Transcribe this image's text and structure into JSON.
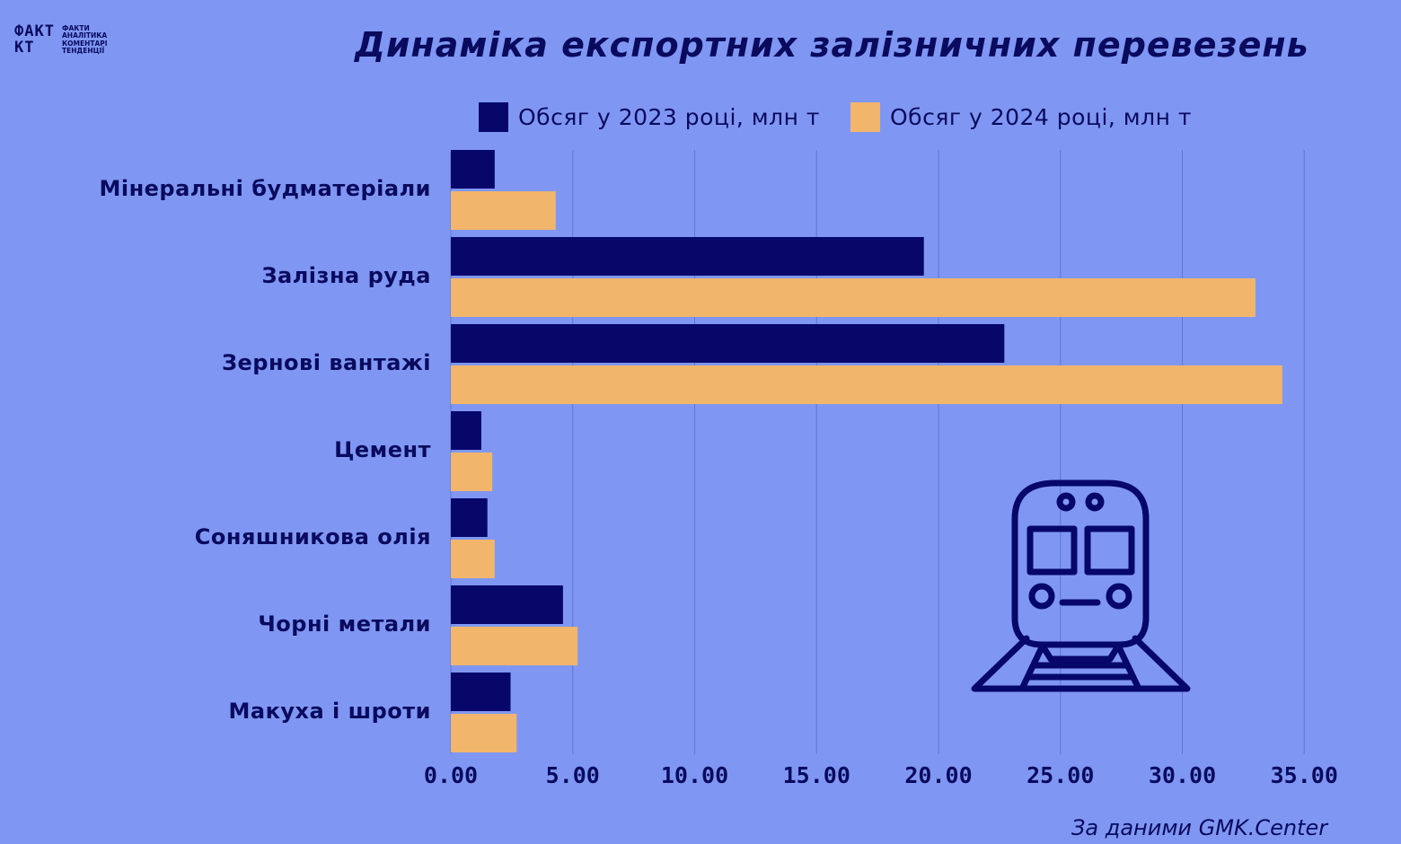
{
  "logo": {
    "mark_line1": "ФАКТ",
    "mark_line2": "КТ",
    "subtitle_lines": [
      "ФАКТИ",
      "АНАЛІТИКА",
      "КОМЕНТАРІ",
      "ТЕНДЕНЦІЇ"
    ]
  },
  "header": {
    "title": "Динаміка експортних залізничних перевезень"
  },
  "footer": {
    "source": "За даними GMK.Center"
  },
  "icons": {
    "train": "train-icon"
  },
  "colors": {
    "background": "#7f97f2",
    "series_2023": "#07076a",
    "series_2024": "#f2b56c",
    "text": "#0a0a5e",
    "gridline": "#5f76d4"
  },
  "chart_data": {
    "type": "bar",
    "orientation": "horizontal",
    "categories": [
      "Мінеральні будматеріали",
      "Залізна руда",
      "Зернові вантажі",
      "Цемент",
      "Соняшникова олія",
      "Чорні метали",
      "Макуха і шроти"
    ],
    "series": [
      {
        "name": "Обсяг у 2023 році, млн т",
        "values": [
          1.8,
          19.4,
          22.7,
          1.25,
          1.5,
          4.6,
          2.45
        ]
      },
      {
        "name": "Обсяг у 2024 році, млн т",
        "values": [
          4.3,
          33.0,
          34.1,
          1.7,
          1.8,
          5.2,
          2.7
        ]
      }
    ],
    "xlim": [
      0,
      35
    ],
    "xticks": [
      0,
      5,
      10,
      15,
      20,
      25,
      30,
      35
    ],
    "tick_labels": [
      "0.00",
      "5.00",
      "10.00",
      "15.00",
      "20.00",
      "25.00",
      "30.00",
      "35.00"
    ],
    "grid": "vertical",
    "legend_position": "top"
  }
}
